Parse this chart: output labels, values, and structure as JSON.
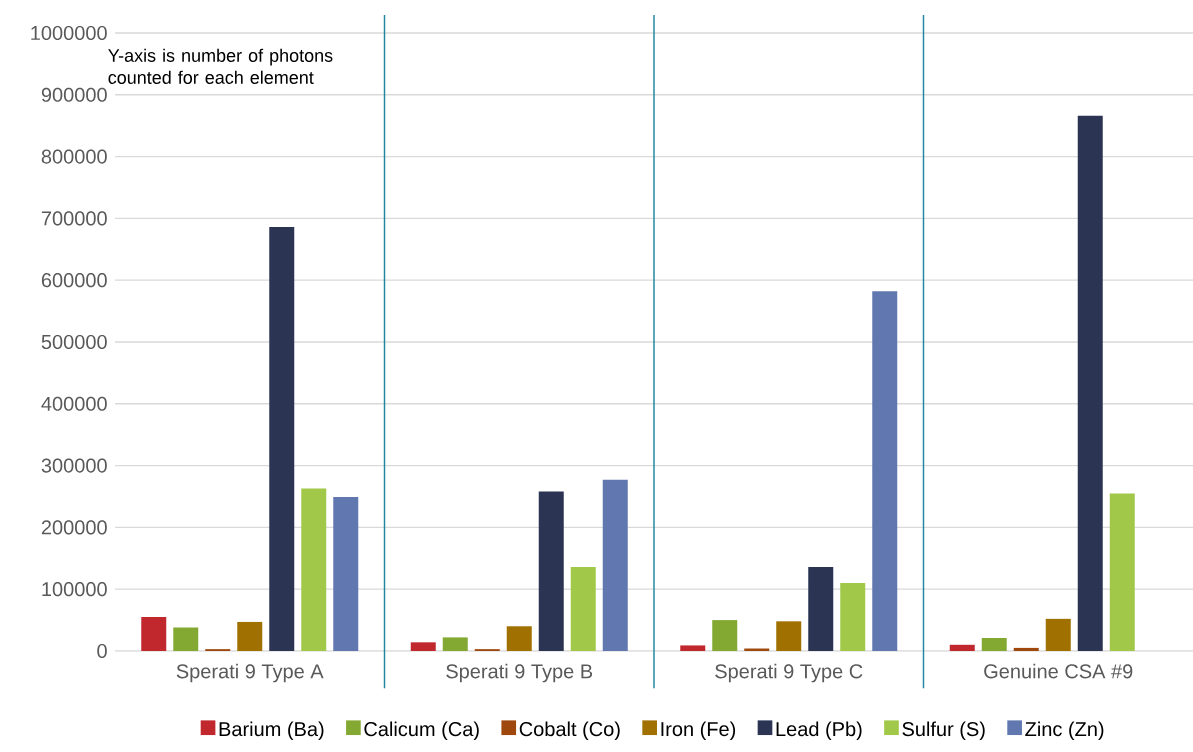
{
  "chart_data": {
    "type": "bar",
    "categories": [
      "Sperati 9 Type A",
      "Sperati 9 Type B",
      "Sperati 9 Type C",
      "Genuine CSA #9"
    ],
    "series": [
      {
        "name": "Barium (Ba)",
        "color": "#c0282d",
        "values": [
          55000,
          14000,
          9000,
          10000
        ]
      },
      {
        "name": "Calicum (Ca)",
        "color": "#84a932",
        "values": [
          38000,
          22000,
          50000,
          21000
        ]
      },
      {
        "name": "Cobalt (Co)",
        "color": "#9e480e",
        "values": [
          3000,
          3000,
          4000,
          5000
        ]
      },
      {
        "name": "Iron (Fe)",
        "color": "#a07000",
        "values": [
          47000,
          40000,
          48000,
          52000
        ]
      },
      {
        "name": "Lead (Pb)",
        "color": "#2b3553",
        "values": [
          686000,
          258000,
          136000,
          866000
        ]
      },
      {
        "name": "Sulfur (S)",
        "color": "#a2c84a",
        "values": [
          263000,
          136000,
          110000,
          255000
        ]
      },
      {
        "name": "Zinc (Zn)",
        "color": "#6077b0",
        "values": [
          249000,
          277000,
          582000,
          null
        ]
      }
    ],
    "ylim": [
      0,
      1000000
    ],
    "yticks": [
      0,
      100000,
      200000,
      300000,
      400000,
      500000,
      600000,
      700000,
      800000,
      900000,
      1000000
    ],
    "grid": "y",
    "legend": "bottom",
    "annotations": [
      "Y-axis is number of  photons counted for each element"
    ]
  }
}
